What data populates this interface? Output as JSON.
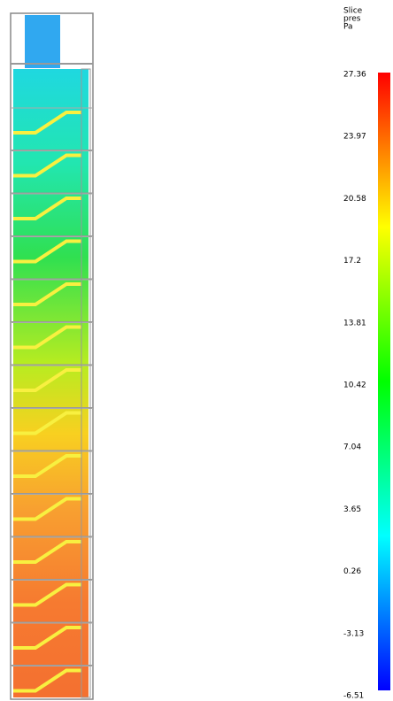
{
  "legend": {
    "title": [
      "Slice",
      "pres",
      "Pa"
    ],
    "ticks": [
      "27.36",
      "23.97",
      "20.58",
      "17.2",
      "13.81",
      "10.42",
      "7.04",
      "3.65",
      "0.26",
      "-3.13",
      "-6.51"
    ]
  }
}
